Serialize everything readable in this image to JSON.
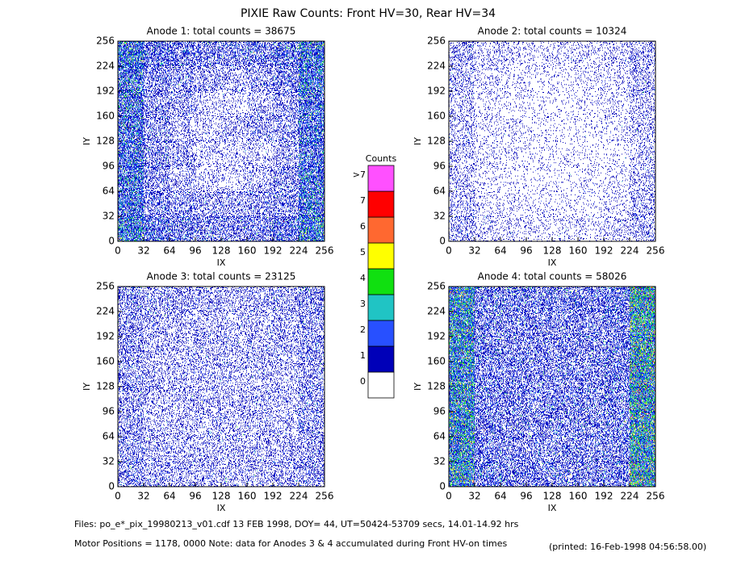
{
  "title": "PIXIE Raw Counts:  Front HV=30, Rear HV=34",
  "colorbar": {
    "title": "Counts",
    "categories": [
      "0",
      "1",
      "2",
      "3",
      "4",
      "5",
      "6",
      "7",
      ">7"
    ],
    "colors": [
      "#ffffff",
      "#0000b8",
      "#2850ff",
      "#20c4c4",
      "#10e010",
      "#ffff00",
      "#ff6830",
      "#ff0000",
      "#ff50ff"
    ]
  },
  "chart_data": [
    {
      "type": "heatmap",
      "title": "Anode 1: total counts = 38675",
      "xlabel": "IX",
      "ylabel": "IY",
      "xlim": [
        0,
        256
      ],
      "ylim": [
        0,
        256
      ],
      "xticks": [
        0,
        32,
        64,
        96,
        128,
        160,
        192,
        224,
        256
      ],
      "yticks": [
        0,
        32,
        64,
        96,
        128,
        160,
        192,
        224,
        256
      ],
      "values": [
        [
          1.6,
          0.9,
          0.7,
          0.6,
          0.6,
          0.7,
          0.9,
          1.6
        ],
        [
          1.4,
          0.6,
          0.5,
          0.4,
          0.4,
          0.5,
          0.6,
          1.4
        ],
        [
          1.3,
          0.5,
          0.3,
          0.2,
          0.2,
          0.3,
          0.5,
          1.3
        ],
        [
          1.3,
          0.5,
          0.4,
          0.2,
          0.2,
          0.2,
          0.4,
          1.2
        ],
        [
          1.3,
          0.5,
          0.3,
          0.2,
          0.3,
          0.4,
          0.4,
          1.2
        ],
        [
          1.3,
          0.5,
          0.4,
          0.2,
          0.2,
          0.3,
          0.4,
          1.2
        ],
        [
          1.4,
          0.6,
          0.5,
          0.4,
          0.3,
          0.4,
          0.6,
          1.4
        ],
        [
          1.6,
          0.8,
          0.7,
          0.6,
          0.6,
          0.7,
          0.8,
          1.6
        ]
      ]
    },
    {
      "type": "heatmap",
      "title": "Anode 2: total counts = 10324",
      "xlabel": "IX",
      "ylabel": "IY",
      "xlim": [
        0,
        256
      ],
      "ylim": [
        0,
        256
      ],
      "xticks": [
        0,
        32,
        64,
        96,
        128,
        160,
        192,
        224,
        256
      ],
      "yticks": [
        0,
        32,
        64,
        96,
        128,
        160,
        192,
        224,
        256
      ],
      "values": [
        [
          0.35,
          0.2,
          0.15,
          0.12,
          0.12,
          0.15,
          0.2,
          0.35
        ],
        [
          0.3,
          0.15,
          0.1,
          0.1,
          0.1,
          0.1,
          0.15,
          0.3
        ],
        [
          0.25,
          0.12,
          0.1,
          0.08,
          0.08,
          0.1,
          0.12,
          0.25
        ],
        [
          0.25,
          0.12,
          0.1,
          0.08,
          0.08,
          0.08,
          0.1,
          0.25
        ],
        [
          0.25,
          0.12,
          0.12,
          0.1,
          0.08,
          0.1,
          0.12,
          0.25
        ],
        [
          0.25,
          0.12,
          0.1,
          0.08,
          0.08,
          0.1,
          0.12,
          0.25
        ],
        [
          0.3,
          0.15,
          0.12,
          0.1,
          0.1,
          0.12,
          0.15,
          0.3
        ],
        [
          0.35,
          0.2,
          0.15,
          0.15,
          0.15,
          0.15,
          0.2,
          0.35
        ]
      ]
    },
    {
      "type": "heatmap",
      "title": "Anode 3: total counts = 23125",
      "xlabel": "IX",
      "ylabel": "IY",
      "xlim": [
        0,
        256
      ],
      "ylim": [
        0,
        256
      ],
      "xticks": [
        0,
        32,
        64,
        96,
        128,
        160,
        192,
        224,
        256
      ],
      "yticks": [
        0,
        32,
        64,
        96,
        128,
        160,
        192,
        224,
        256
      ],
      "values": [
        [
          0.5,
          0.4,
          0.35,
          0.35,
          0.35,
          0.35,
          0.4,
          0.5
        ],
        [
          0.45,
          0.35,
          0.3,
          0.3,
          0.3,
          0.3,
          0.35,
          0.45
        ],
        [
          0.45,
          0.3,
          0.3,
          0.3,
          0.3,
          0.3,
          0.3,
          0.45
        ],
        [
          0.45,
          0.3,
          0.3,
          0.3,
          0.3,
          0.3,
          0.3,
          0.45
        ],
        [
          0.45,
          0.3,
          0.3,
          0.3,
          0.3,
          0.3,
          0.3,
          0.45
        ],
        [
          0.45,
          0.3,
          0.3,
          0.3,
          0.3,
          0.3,
          0.3,
          0.45
        ],
        [
          0.45,
          0.35,
          0.3,
          0.3,
          0.3,
          0.3,
          0.35,
          0.45
        ],
        [
          0.5,
          0.4,
          0.35,
          0.35,
          0.35,
          0.35,
          0.4,
          0.55
        ]
      ]
    },
    {
      "type": "heatmap",
      "title": "Anode 4: total counts = 58026",
      "xlabel": "IX",
      "ylabel": "IY",
      "xlim": [
        0,
        256
      ],
      "ylim": [
        0,
        256
      ],
      "xticks": [
        0,
        32,
        64,
        96,
        128,
        160,
        192,
        224,
        256
      ],
      "yticks": [
        0,
        32,
        64,
        96,
        128,
        160,
        192,
        224,
        256
      ],
      "values": [
        [
          2.2,
          0.8,
          0.7,
          0.7,
          0.7,
          0.7,
          0.8,
          2.6
        ],
        [
          2.0,
          0.7,
          0.6,
          0.6,
          0.6,
          0.6,
          0.7,
          2.4
        ],
        [
          2.0,
          0.7,
          0.6,
          0.6,
          0.6,
          0.6,
          0.7,
          2.4
        ],
        [
          2.0,
          0.7,
          0.6,
          0.6,
          0.6,
          0.6,
          0.7,
          2.4
        ],
        [
          2.0,
          0.7,
          0.6,
          0.6,
          0.6,
          0.6,
          0.7,
          2.4
        ],
        [
          2.0,
          0.7,
          0.6,
          0.6,
          0.6,
          0.6,
          0.7,
          2.4
        ],
        [
          2.0,
          0.7,
          0.6,
          0.6,
          0.6,
          0.6,
          0.7,
          2.4
        ],
        [
          2.2,
          0.8,
          0.7,
          0.7,
          0.7,
          0.7,
          0.8,
          2.6
        ]
      ]
    }
  ],
  "footer": {
    "files": "Files: po_e*_pix_19980213_v01.cdf    13 FEB 1998, DOY= 44, UT=50424-53709 secs, 14.01-14.92 hrs",
    "motor": "Motor Positions = 1178, 0000   Note: data for Anodes 3 & 4 accumulated during Front HV-on times",
    "printed": "(printed: 16-Feb-1998 04:56:58.00)"
  }
}
